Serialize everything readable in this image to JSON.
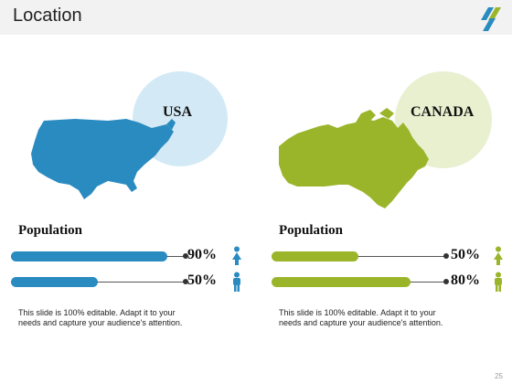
{
  "slide": {
    "title": "Location",
    "page_number": "25",
    "logo_colors": [
      "#2a8bc0",
      "#9bb52b"
    ]
  },
  "usa": {
    "label": "USA",
    "map_color": "#2a8bc0",
    "circle_color": "#d3eaf6",
    "population_title": "Population",
    "bars": [
      {
        "value": 90,
        "label": "90%",
        "icon": "female-person-icon"
      },
      {
        "value": 50,
        "label": "50%",
        "icon": "male-person-icon"
      }
    ],
    "description": "This slide is 100% editable. Adapt it to your needs and capture your audience's attention."
  },
  "canada": {
    "label": "CANADA",
    "map_color": "#9bb52b",
    "circle_color": "#e8f0d0",
    "population_title": "Population",
    "bars": [
      {
        "value": 50,
        "label": "50%",
        "icon": "female-person-icon"
      },
      {
        "value": 80,
        "label": "80%",
        "icon": "male-person-icon"
      }
    ],
    "description": "This slide is 100% editable. Adapt it to your needs and capture your audience's attention."
  }
}
